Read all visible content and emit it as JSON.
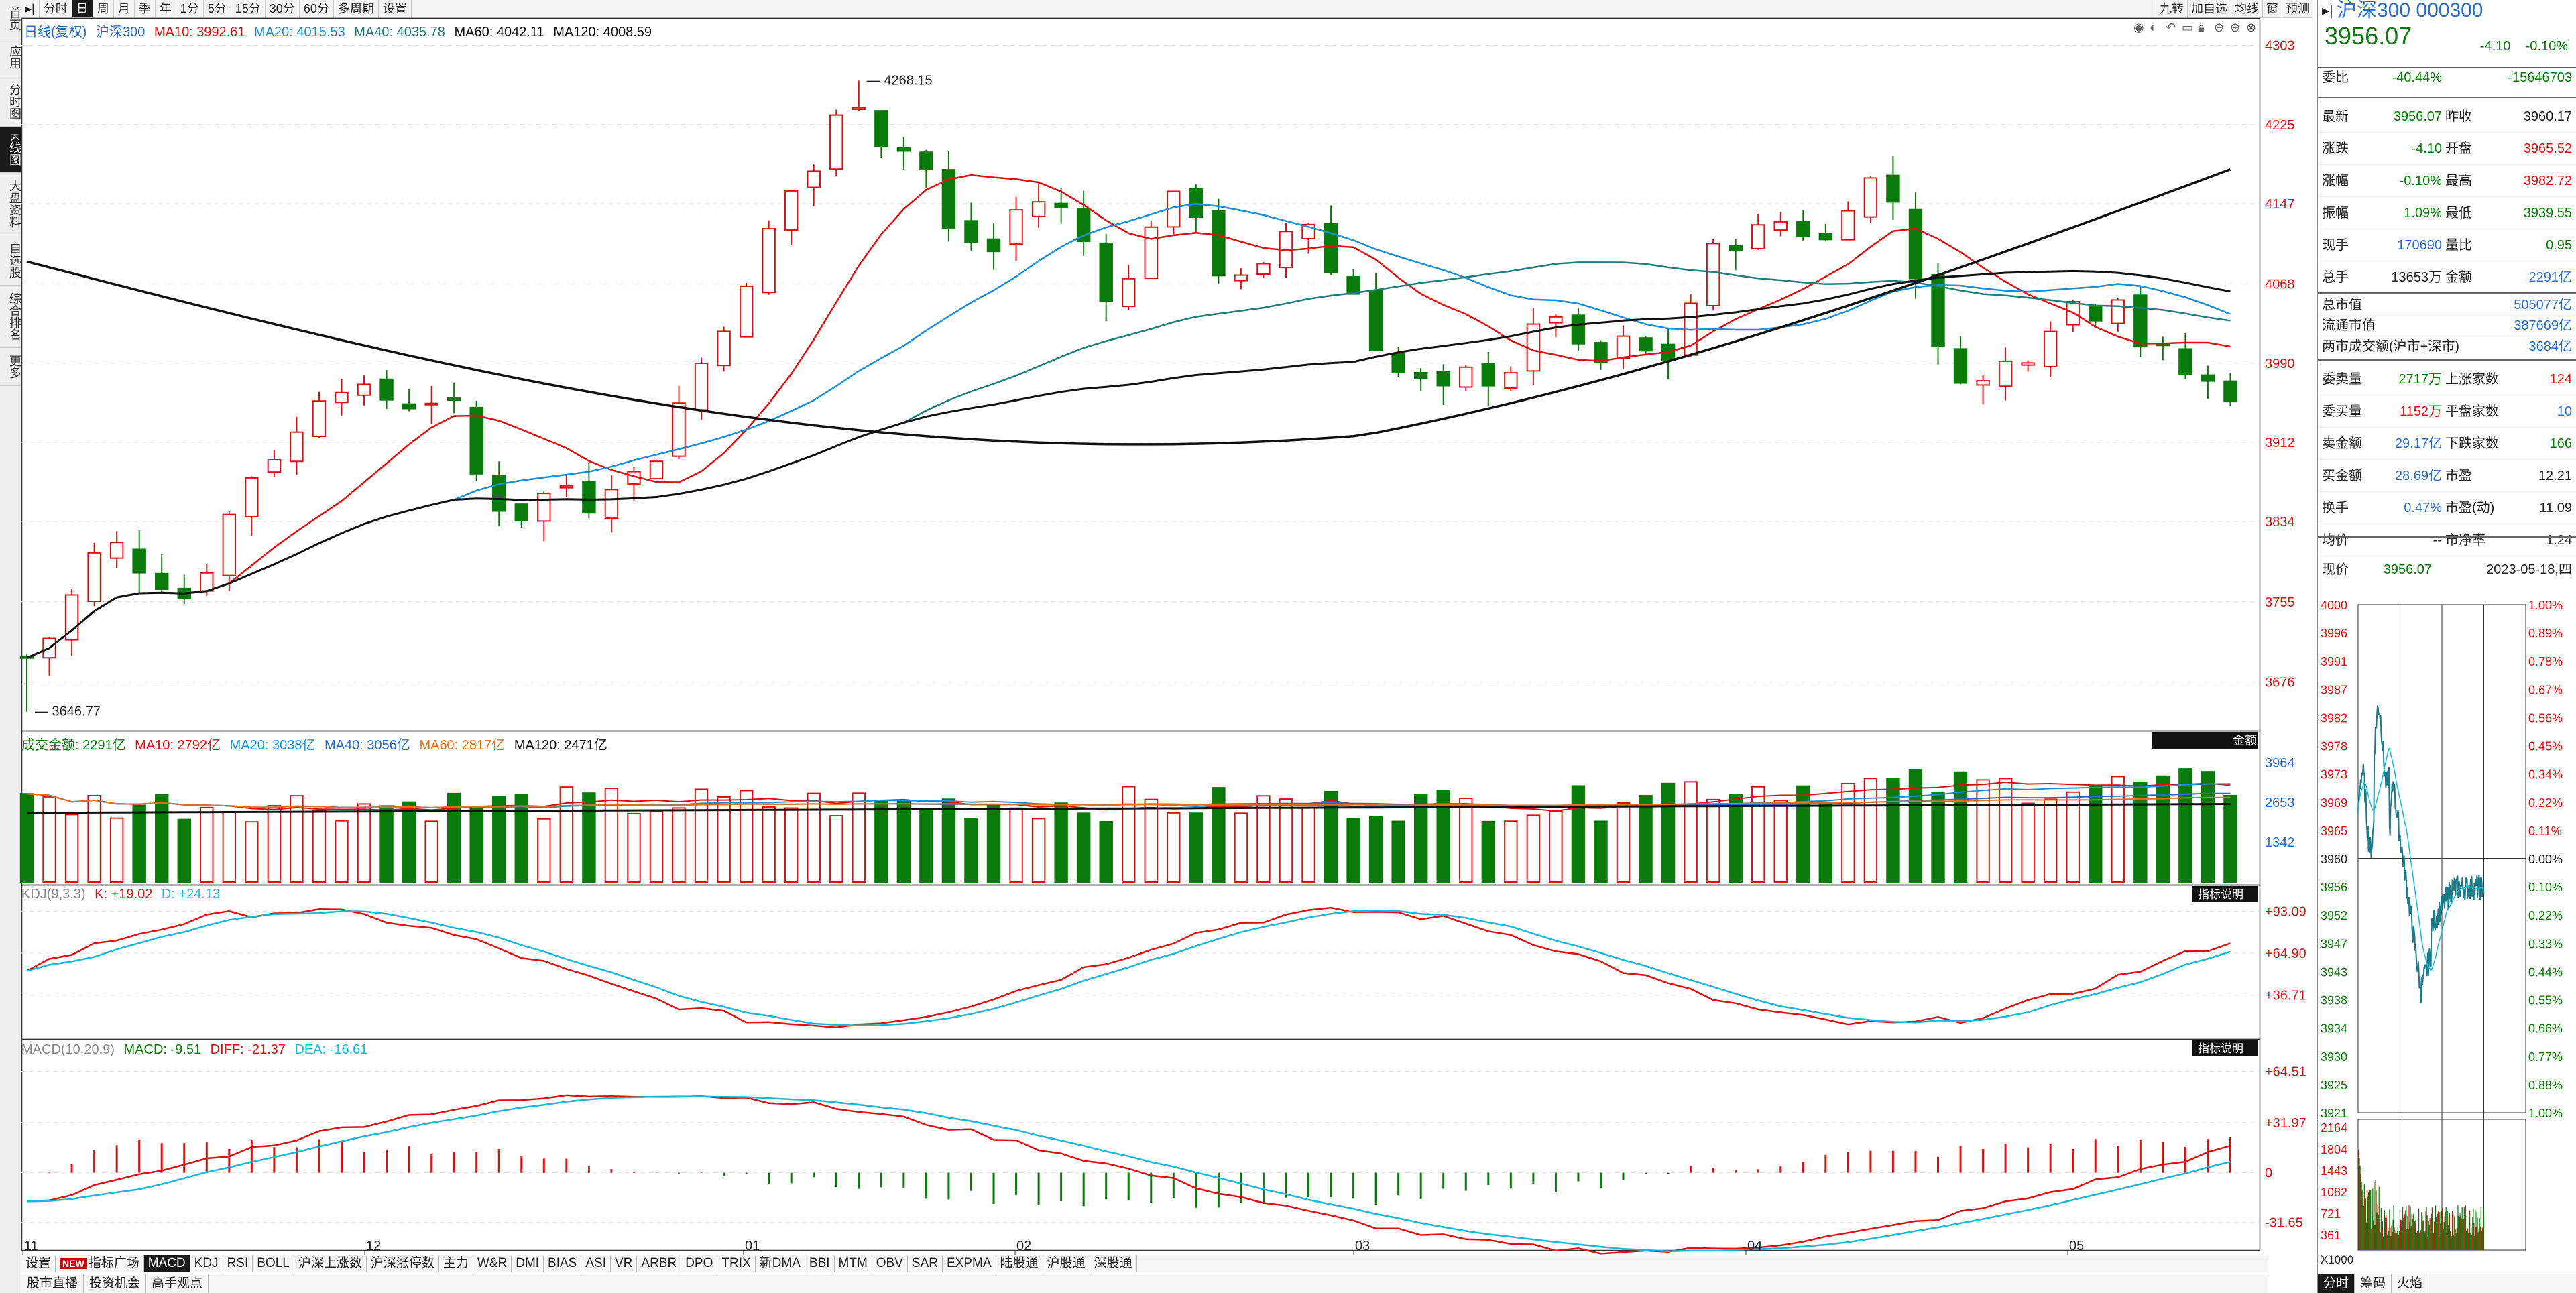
{
  "toolbar": {
    "buttons": [
      "分时",
      "日",
      "周",
      "月",
      "季",
      "年",
      "1分",
      "5分",
      "15分",
      "30分",
      "60分",
      "多周期",
      "设置"
    ],
    "active_index": 1,
    "right_buttons": [
      "九转",
      "加自选",
      "均线",
      "窗",
      "预测"
    ]
  },
  "left_tabs": [
    "首页",
    "应用",
    "分时图",
    "K线图",
    "大盘资料",
    "自选股",
    "综合排名",
    "更多"
  ],
  "left_active": 3,
  "main_legend": {
    "label": "日线(复权)",
    "name": "沪深300",
    "ma10": "MA10: 3992.61",
    "ma20": "MA20: 4015.53",
    "ma40": "MA40: 4035.78",
    "ma60": "MA60: 4042.11",
    "ma120": "MA120: 4008.59",
    "high_label": "4268.15",
    "low_label": "3646.77"
  },
  "price_axis": [
    "4303",
    "4225",
    "4147",
    "4068",
    "3990",
    "3912",
    "3834",
    "3755",
    "3676"
  ],
  "volume_legend": {
    "label": "成交金额: 2291亿",
    "ma10": "MA10: 2792亿",
    "ma20": "MA20: 3038亿",
    "ma40": "MA40: 3056亿",
    "ma60": "MA60: 2817亿",
    "ma120": "MA120: 2471亿",
    "badge": "金额"
  },
  "volume_axis": [
    "3964",
    "2653",
    "1342"
  ],
  "kdj_legend": {
    "label": "KDJ(9,3,3)",
    "k": "K: +19.02",
    "d": "D: +24.13",
    "badge": "指标说明"
  },
  "kdj_axis": [
    "+93.09",
    "+64.90",
    "+36.71"
  ],
  "macd_legend": {
    "label": "MACD(10,20,9)",
    "macd": "MACD: -9.51",
    "diff": "DIFF: -21.37",
    "dea": "DEA: -16.61",
    "badge": "指标说明"
  },
  "macd_axis": [
    "+64.51",
    "+31.97",
    "0",
    "-31.65"
  ],
  "date_axis": [
    "11",
    "12",
    "01",
    "02",
    "03",
    "04",
    "05"
  ],
  "indicator_tabs": [
    "设置",
    "指标广场",
    "MACD",
    "KDJ",
    "RSI",
    "BOLL",
    "沪深上涨数",
    "沪深涨停数",
    "主力",
    "W&R",
    "DMI",
    "BIAS",
    "ASI",
    "VR",
    "ARBR",
    "DPO",
    "TRIX",
    "新DMA",
    "BBI",
    "MTM",
    "OBV",
    "SAR",
    "EXPMA",
    "陆股通",
    "沪股通",
    "深股通"
  ],
  "indicator_active": 2,
  "new_badge": "NEW",
  "bottom_tabs": [
    "股市直播",
    "投资机会",
    "高手观点"
  ],
  "side": {
    "title": "沪深300 000300",
    "price": "3956.07",
    "change": "-4.10",
    "change_pct": "-0.10%",
    "weibi_label": "委比",
    "weibi_pct": "-40.44%",
    "weibi_val": "-15646703",
    "rows1": [
      {
        "l": "最新",
        "v": "3956.07",
        "c": "g",
        "l2": "昨收",
        "v2": "3960.17",
        "c2": "k"
      },
      {
        "l": "涨跌",
        "v": "-4.10",
        "c": "g",
        "l2": "开盘",
        "v2": "3965.52",
        "c2": "r"
      },
      {
        "l": "涨幅",
        "v": "-0.10%",
        "c": "g",
        "l2": "最高",
        "v2": "3982.72",
        "c2": "r"
      },
      {
        "l": "振幅",
        "v": "1.09%",
        "c": "g",
        "l2": "最低",
        "v2": "3939.55",
        "c2": "g"
      },
      {
        "l": "现手",
        "v": "170690",
        "c": "b",
        "l2": "量比",
        "v2": "0.95",
        "c2": "g"
      },
      {
        "l": "总手",
        "v": "13653万",
        "c": "k",
        "l2": "金额",
        "v2": "2291亿",
        "c2": "b"
      }
    ],
    "rows2": [
      {
        "l": "总市值",
        "v": "505077亿"
      },
      {
        "l": "流通市值",
        "v": "387669亿"
      },
      {
        "l": "两市成交额(沪市+深市)",
        "v": "3684亿"
      }
    ],
    "rows3": [
      {
        "l": "委卖量",
        "v": "2717万",
        "c": "g",
        "l2": "上涨家数",
        "v2": "124",
        "c2": "r"
      },
      {
        "l": "委买量",
        "v": "1152万",
        "c": "r",
        "l2": "平盘家数",
        "v2": "10",
        "c2": "b"
      },
      {
        "l": "卖金额",
        "v": "29.17亿",
        "c": "b",
        "l2": "下跌家数",
        "v2": "166",
        "c2": "g"
      },
      {
        "l": "买金额",
        "v": "28.69亿",
        "c": "b",
        "l2": "市盈",
        "v2": "12.21",
        "c2": "k"
      },
      {
        "l": "换手",
        "v": "0.47%",
        "c": "b",
        "l2": "市盈(动)",
        "v2": "11.09",
        "c2": "k"
      },
      {
        "l": "均价",
        "v": "--",
        "c": "k",
        "l2": "市净率",
        "v2": "1.24",
        "c2": "k"
      }
    ],
    "now_label": "现价",
    "now_price": "3956.07",
    "date": "2023-05-18,四",
    "mini_left": [
      "4000",
      "3996",
      "3991",
      "3987",
      "3982",
      "3978",
      "3973",
      "3969",
      "3965",
      "3960",
      "3956",
      "3952",
      "3947",
      "3943",
      "3938",
      "3934",
      "3930",
      "3925",
      "3921"
    ],
    "mini_right": [
      "1.00%",
      "0.89%",
      "0.78%",
      "0.67%",
      "0.56%",
      "0.45%",
      "0.34%",
      "0.22%",
      "0.11%",
      "0.00%",
      "0.10%",
      "0.22%",
      "0.33%",
      "0.44%",
      "0.55%",
      "0.66%",
      "0.77%",
      "0.88%",
      "1.00%"
    ],
    "mini_vol": [
      "2164",
      "1804",
      "1443",
      "1082",
      "721",
      "361"
    ],
    "vol_unit": "X1000",
    "mini_tabs": [
      "分时",
      "筹码",
      "火焰"
    ]
  }
}
